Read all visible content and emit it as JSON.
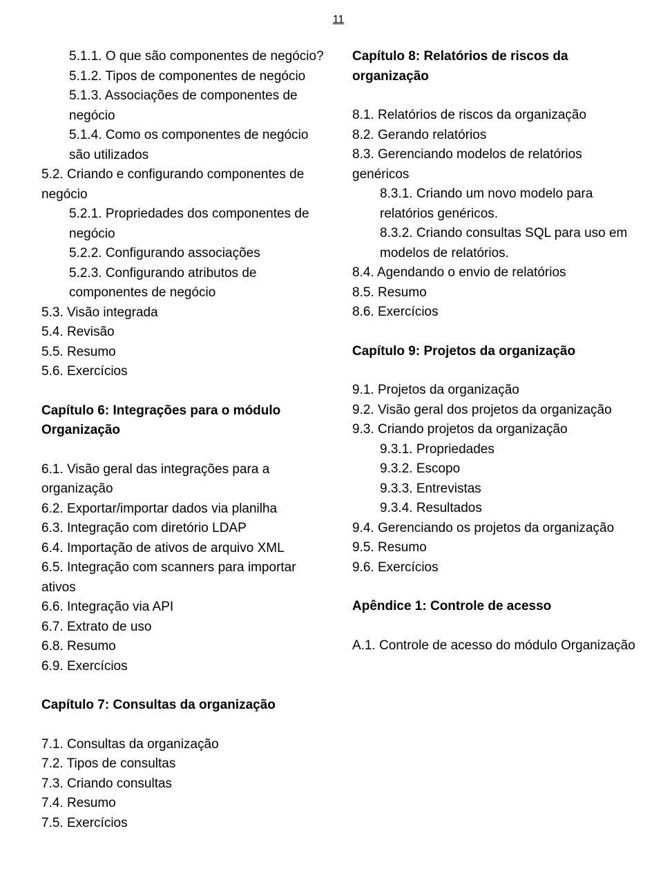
{
  "page_number": "11",
  "left": [
    {
      "indent": 1,
      "bold": false,
      "text": "5.1.1. O que são componentes de negócio?"
    },
    {
      "indent": 1,
      "bold": false,
      "text": "5.1.2. Tipos de componentes de negócio"
    },
    {
      "indent": 1,
      "bold": false,
      "text": "5.1.3. Associações de componentes de negócio"
    },
    {
      "indent": 1,
      "bold": false,
      "text": "5.1.4. Como os componentes de negócio são utilizados"
    },
    {
      "indent": 0,
      "bold": false,
      "text": "5.2. Criando e configurando componentes de negócio"
    },
    {
      "indent": 1,
      "bold": false,
      "text": "5.2.1. Propriedades dos componentes de negócio"
    },
    {
      "indent": 1,
      "bold": false,
      "text": "5.2.2. Configurando associações"
    },
    {
      "indent": 1,
      "bold": false,
      "text": "5.2.3. Configurando atributos de componentes de negócio"
    },
    {
      "indent": 0,
      "bold": false,
      "text": "5.3. Visão integrada"
    },
    {
      "indent": 0,
      "bold": false,
      "text": "5.4. Revisão"
    },
    {
      "indent": 0,
      "bold": false,
      "text": "5.5. Resumo"
    },
    {
      "indent": 0,
      "bold": false,
      "text": "5.6. Exercícios"
    },
    {
      "spacer": true
    },
    {
      "indent": 0,
      "bold": true,
      "text": "Capítulo 6: Integrações para o módulo Organização"
    },
    {
      "spacer": true
    },
    {
      "indent": 0,
      "bold": false,
      "text": "6.1. Visão geral das integrações para a organização"
    },
    {
      "indent": 0,
      "bold": false,
      "text": "6.2. Exportar/importar dados via planilha"
    },
    {
      "indent": 0,
      "bold": false,
      "text": "6.3. Integração com diretório LDAP"
    },
    {
      "indent": 0,
      "bold": false,
      "text": "6.4. Importação de ativos de arquivo XML"
    },
    {
      "indent": 0,
      "bold": false,
      "text": "6.5. Integração com scanners para importar ativos"
    },
    {
      "indent": 0,
      "bold": false,
      "text": "6.6. Integração via API"
    },
    {
      "indent": 0,
      "bold": false,
      "text": "6.7. Extrato de uso"
    },
    {
      "indent": 0,
      "bold": false,
      "text": "6.8. Resumo"
    },
    {
      "indent": 0,
      "bold": false,
      "text": "6.9. Exercícios"
    },
    {
      "spacer": true
    },
    {
      "indent": 0,
      "bold": true,
      "text": "Capítulo 7: Consultas da organização"
    },
    {
      "spacer": true
    },
    {
      "indent": 0,
      "bold": false,
      "text": "7.1. Consultas da organização"
    },
    {
      "indent": 0,
      "bold": false,
      "text": "7.2. Tipos de consultas"
    },
    {
      "indent": 0,
      "bold": false,
      "text": "7.3. Criando consultas"
    },
    {
      "indent": 0,
      "bold": false,
      "text": "7.4. Resumo"
    },
    {
      "indent": 0,
      "bold": false,
      "text": "7.5. Exercícios"
    }
  ],
  "right": [
    {
      "indent": 0,
      "bold": true,
      "text": "Capítulo 8: Relatórios de riscos da organização"
    },
    {
      "spacer": true
    },
    {
      "indent": 0,
      "bold": false,
      "text": "8.1. Relatórios de riscos da organização"
    },
    {
      "indent": 0,
      "bold": false,
      "text": "8.2. Gerando relatórios"
    },
    {
      "indent": 0,
      "bold": false,
      "text": "8.3. Gerenciando modelos de relatórios genéricos"
    },
    {
      "indent": 1,
      "bold": false,
      "text": "8.3.1. Criando um novo modelo para relatórios genéricos."
    },
    {
      "indent": 1,
      "bold": false,
      "text": "8.3.2. Criando consultas SQL para uso em modelos de relatórios."
    },
    {
      "indent": 0,
      "bold": false,
      "text": "8.4. Agendando o envio de relatórios"
    },
    {
      "indent": 0,
      "bold": false,
      "text": "8.5. Resumo"
    },
    {
      "indent": 0,
      "bold": false,
      "text": "8.6. Exercícios"
    },
    {
      "spacer": true
    },
    {
      "indent": 0,
      "bold": true,
      "text": "Capítulo 9: Projetos da organização"
    },
    {
      "spacer": true
    },
    {
      "indent": 0,
      "bold": false,
      "text": "9.1. Projetos da organização"
    },
    {
      "indent": 0,
      "bold": false,
      "text": "9.2. Visão geral dos projetos da organização"
    },
    {
      "indent": 0,
      "bold": false,
      "text": "9.3. Criando projetos da organização"
    },
    {
      "indent": 1,
      "bold": false,
      "text": "9.3.1. Propriedades"
    },
    {
      "indent": 1,
      "bold": false,
      "text": "9.3.2. Escopo"
    },
    {
      "indent": 1,
      "bold": false,
      "text": "9.3.3. Entrevistas"
    },
    {
      "indent": 1,
      "bold": false,
      "text": "9.3.4. Resultados"
    },
    {
      "indent": 0,
      "bold": false,
      "text": "9.4. Gerenciando os projetos da organização"
    },
    {
      "indent": 0,
      "bold": false,
      "text": "9.5. Resumo"
    },
    {
      "indent": 0,
      "bold": false,
      "text": "9.6. Exercícios"
    },
    {
      "spacer": true
    },
    {
      "indent": 0,
      "bold": true,
      "text": "Apêndice 1: Controle de acesso"
    },
    {
      "spacer": true
    },
    {
      "indent": 0,
      "bold": false,
      "text": "A.1. Controle de acesso do módulo Organização"
    }
  ]
}
